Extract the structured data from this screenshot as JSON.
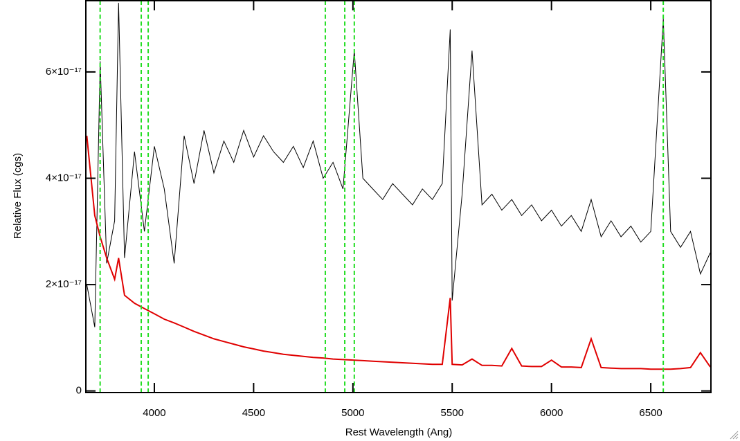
{
  "chart_data": {
    "type": "line",
    "xlabel": "Rest Wavelength (Ang)",
    "ylabel": "Relative Flux (cgs)",
    "xlim": [
      3655,
      6803
    ],
    "ylim": [
      -3e-19,
      7.34e-17
    ],
    "xticks": [
      4000,
      4500,
      5000,
      5500,
      6000,
      6500
    ],
    "yticks": [
      0,
      {
        "value": 2e-17,
        "label": "2×10⁻¹⁷"
      },
      {
        "value": 4e-17,
        "label": "4×10⁻¹⁷"
      },
      {
        "value": 6e-17,
        "label": "6×10⁻¹⁷"
      }
    ],
    "x": [
      3660,
      3700,
      3727,
      3760,
      3800,
      3820,
      3850,
      3900,
      3950,
      4000,
      4050,
      4100,
      4150,
      4200,
      4250,
      4300,
      4350,
      4400,
      4450,
      4500,
      4550,
      4600,
      4650,
      4700,
      4750,
      4800,
      4850,
      4900,
      4950,
      5007,
      5050,
      5100,
      5150,
      5200,
      5250,
      5300,
      5350,
      5400,
      5450,
      5490,
      5500,
      5550,
      5600,
      5650,
      5700,
      5750,
      5800,
      5850,
      5900,
      5950,
      6000,
      6050,
      6100,
      6150,
      6200,
      6250,
      6300,
      6350,
      6400,
      6450,
      6500,
      6563,
      6600,
      6650,
      6700,
      6750,
      6800
    ],
    "series": [
      {
        "color": "#000000",
        "values": [
          2e-17,
          1.2e-17,
          6.2e-17,
          2.4e-17,
          3.2e-17,
          7.3e-17,
          2.5e-17,
          4.5e-17,
          3e-17,
          4.6e-17,
          3.8e-17,
          2.4e-17,
          4.8e-17,
          3.9e-17,
          4.9e-17,
          4.1e-17,
          4.7e-17,
          4.3e-17,
          4.9e-17,
          4.4e-17,
          4.8e-17,
          4.5e-17,
          4.3e-17,
          4.6e-17,
          4.2e-17,
          4.7e-17,
          4e-17,
          4.3e-17,
          3.8e-17,
          6.4e-17,
          4e-17,
          3.8e-17,
          3.6e-17,
          3.9e-17,
          3.7e-17,
          3.5e-17,
          3.8e-17,
          3.6e-17,
          3.9e-17,
          6.8e-17,
          1.7e-17,
          3.7e-17,
          6.4e-17,
          3.5e-17,
          3.7e-17,
          3.4e-17,
          3.6e-17,
          3.3e-17,
          3.5e-17,
          3.2e-17,
          3.4e-17,
          3.1e-17,
          3.3e-17,
          3e-17,
          3.6e-17,
          2.9e-17,
          3.2e-17,
          2.9e-17,
          3.1e-17,
          2.8e-17,
          3e-17,
          7e-17,
          3e-17,
          2.7e-17,
          3e-17,
          2.2e-17,
          2.6e-17
        ]
      },
      {
        "color": "#e00000",
        "values": [
          4.8e-17,
          3.3e-17,
          2.9e-17,
          2.5e-17,
          2.1e-17,
          2.5e-17,
          1.8e-17,
          1.65e-17,
          1.55e-17,
          1.45e-17,
          1.35e-17,
          1.28e-17,
          1.2e-17,
          1.12e-17,
          1.05e-17,
          9.8e-18,
          9.3e-18,
          8.8e-18,
          8.3e-18,
          7.9e-18,
          7.5e-18,
          7.2e-18,
          6.9e-18,
          6.7e-18,
          6.5e-18,
          6.3e-18,
          6.2e-18,
          6e-18,
          5.9e-18,
          5.8e-18,
          5.7e-18,
          5.6e-18,
          5.5e-18,
          5.4e-18,
          5.3e-18,
          5.2e-18,
          5.1e-18,
          5e-18,
          5e-18,
          1.75e-17,
          5e-18,
          4.9e-18,
          6e-18,
          4.8e-18,
          4.8e-18,
          4.7e-18,
          8e-18,
          4.7e-18,
          4.6e-18,
          4.6e-18,
          5.8e-18,
          4.5e-18,
          4.5e-18,
          4.4e-18,
          9.8e-18,
          4.4e-18,
          4.3e-18,
          4.2e-18,
          4.2e-18,
          4.2e-18,
          4.1e-18,
          4.1e-18,
          4.1e-18,
          4.2e-18,
          4.4e-18,
          7.2e-18,
          4.5e-18
        ]
      }
    ],
    "vlines": [
      3727,
      3934,
      3969,
      4861,
      4959,
      5007,
      6563
    ],
    "vline_color": "#22dd22"
  }
}
